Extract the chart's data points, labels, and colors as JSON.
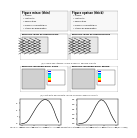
{
  "title": "Figure 17 - Comparison of thin and thick geometries. 2D finite element calculation for viscoplastic deformations without threshold  (doc. CEMEF)",
  "background_color": "#ffffff",
  "left_curve_x": [
    0,
    0.1,
    0.2,
    0.3,
    0.4,
    0.5,
    0.6,
    0.7,
    0.8,
    0.9,
    1.0,
    1.1,
    1.2,
    1.3,
    1.4,
    1.5
  ],
  "left_curve_y": [
    0,
    0.05,
    0.2,
    0.6,
    1.2,
    1.8,
    2.4,
    2.9,
    3.3,
    3.5,
    3.5,
    3.3,
    2.8,
    2.0,
    1.0,
    0.2
  ],
  "right_curve_x": [
    0,
    0.1,
    0.2,
    0.3,
    0.4,
    0.5,
    0.6,
    0.7,
    0.8,
    0.9,
    1.0,
    1.1,
    1.2,
    1.3,
    1.4,
    1.5
  ],
  "right_curve_y": [
    0,
    0.02,
    0.08,
    0.2,
    0.5,
    0.9,
    1.4,
    1.9,
    2.3,
    2.5,
    2.4,
    2.1,
    1.6,
    1.0,
    0.5,
    0.1
  ],
  "curve_color": "#000000",
  "text_color": "#000000"
}
